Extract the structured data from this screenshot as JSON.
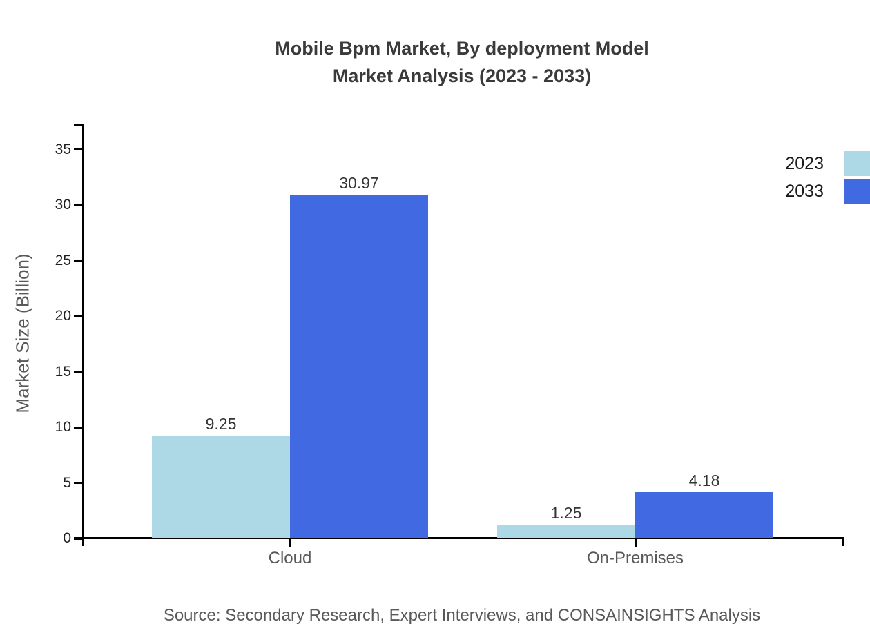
{
  "title": {
    "line1": "Mobile Bpm Market, By deployment Model",
    "line2": "Market Analysis (2023 - 2033)"
  },
  "y_axis_title": "Market Size (Billion)",
  "source": "Source: Secondary Research, Expert Interviews, and CONSAINSIGHTS Analysis",
  "legend": [
    {
      "label": "2023",
      "color": "#ADD8E6"
    },
    {
      "label": "2033",
      "color": "#4169E1"
    }
  ],
  "colors": {
    "series_2023": "#ADD8E6",
    "series_2033": "#4169E1",
    "axis": "#000000",
    "title_text": "#3a3a3a",
    "muted_text": "#595959"
  },
  "chart_data": {
    "type": "bar",
    "title": "Mobile Bpm Market, By deployment Model Market Analysis (2023 - 2033)",
    "categories": [
      "Cloud",
      "On-Premises"
    ],
    "series": [
      {
        "name": "2023",
        "color": "#ADD8E6",
        "values": [
          9.25,
          1.25
        ]
      },
      {
        "name": "2033",
        "color": "#4169E1",
        "values": [
          30.97,
          4.18
        ]
      }
    ],
    "value_labels": [
      "9.25",
      "30.97",
      "1.25",
      "4.18"
    ],
    "xlabel": "",
    "ylabel": "Market Size (Billion)",
    "ylim": [
      0,
      37.3
    ],
    "yticks": [
      0,
      5,
      10,
      15,
      20,
      25,
      30,
      35
    ],
    "grid": false,
    "legend_position": "outside-right-top",
    "bar_value_labels_shown": true
  }
}
